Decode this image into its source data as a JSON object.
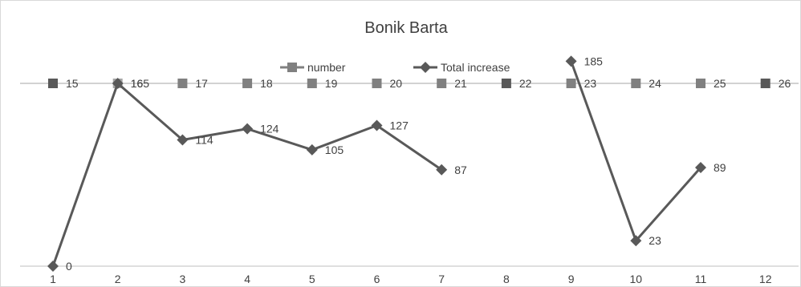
{
  "chart_data": {
    "type": "line",
    "title": "Bonik Barta",
    "xlabel": "",
    "ylabel": "",
    "legend_position": "top",
    "x": [
      1,
      2,
      3,
      4,
      5,
      6,
      7,
      8,
      9,
      10,
      11,
      12
    ],
    "series": [
      {
        "name": "number",
        "values": [
          15,
          16,
          17,
          18,
          19,
          20,
          21,
          22,
          23,
          24,
          25,
          26
        ],
        "marker": "square",
        "color": "#808080",
        "point_colors": [
          "#595959",
          "#a6a6a6",
          "#808080",
          "#808080",
          "#808080",
          "#808080",
          "#808080",
          "#595959",
          "#808080",
          "#808080",
          "#808080",
          "#595959"
        ],
        "line": false
      },
      {
        "name": "Total increase",
        "values": [
          0,
          165,
          114,
          124,
          105,
          127,
          87,
          null,
          185,
          23,
          89,
          null
        ],
        "marker": "diamond",
        "color": "#595959",
        "line": true
      }
    ],
    "grid": false
  }
}
